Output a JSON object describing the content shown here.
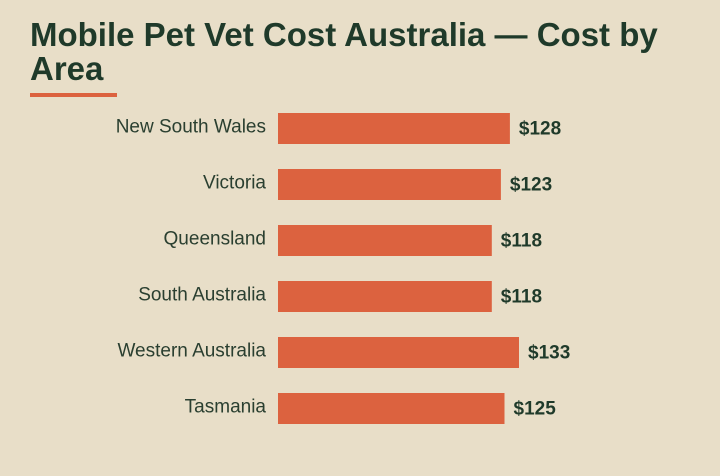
{
  "colors": {
    "background": "#e8dec8",
    "bar": "#dc623f",
    "title": "#1f3a2a",
    "text": "#2a3f30"
  },
  "chart_data": {
    "type": "bar",
    "orientation": "horizontal",
    "title": "Mobile Pet Vet Cost Australia — Cost by Area",
    "xlabel": "",
    "ylabel": "",
    "categories": [
      "New South Wales",
      "Victoria",
      "Queensland",
      "South Australia",
      "Western Australia",
      "Tasmania"
    ],
    "values": [
      128,
      123,
      118,
      118,
      133,
      125
    ],
    "value_labels": [
      "$128",
      "$123",
      "$118",
      "$118",
      "$133",
      "$125"
    ],
    "xlim": [
      0,
      133
    ],
    "grid": false,
    "legend": "none"
  }
}
